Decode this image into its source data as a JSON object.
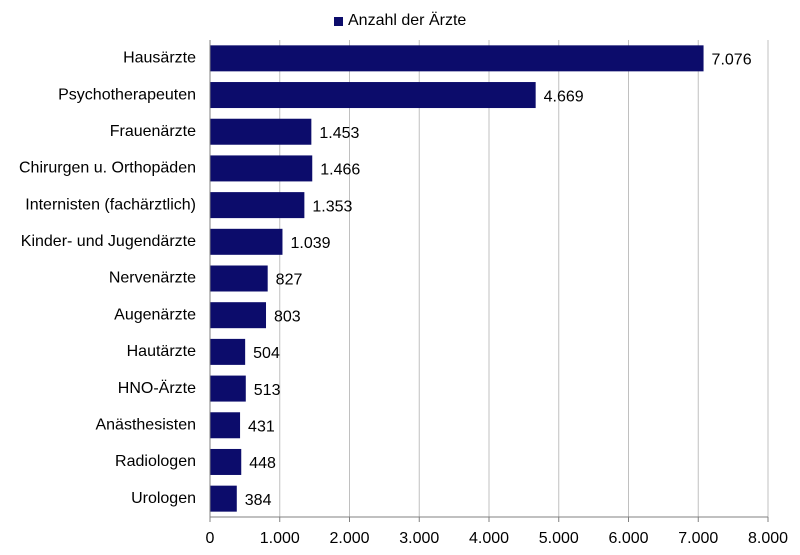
{
  "chart_data": {
    "type": "bar",
    "orientation": "horizontal",
    "categories": [
      "Hausärzte",
      "Psychotherapeuten",
      "Frauenärzte",
      "Chirurgen u. Orthopäden",
      "Internisten (fachärztlich)",
      "Kinder- und Jugendärzte",
      "Nervenärzte",
      "Augenärzte",
      "Hautärzte",
      "HNO-Ärzte",
      "Anästhesisten",
      "Radiologen",
      "Urologen"
    ],
    "series": [
      {
        "name": "Anzahl der Ärzte",
        "values": [
          7076,
          4669,
          1453,
          1466,
          1353,
          1039,
          827,
          803,
          504,
          513,
          431,
          448,
          384
        ],
        "data_labels": [
          "7.076",
          "4.669",
          "1.453",
          "1.466",
          "1.353",
          "1.039",
          "827",
          "803",
          "504",
          "513",
          "431",
          "448",
          "384"
        ],
        "color": "#0c0c6b"
      }
    ],
    "xlim": [
      0,
      8000
    ],
    "x_ticks": [
      0,
      1000,
      2000,
      3000,
      4000,
      5000,
      6000,
      7000,
      8000
    ],
    "x_tick_labels": [
      "0",
      "1.000",
      "2.000",
      "3.000",
      "4.000",
      "5.000",
      "6.000",
      "7.000",
      "8.000"
    ],
    "grid": true,
    "legend_position": "top"
  }
}
